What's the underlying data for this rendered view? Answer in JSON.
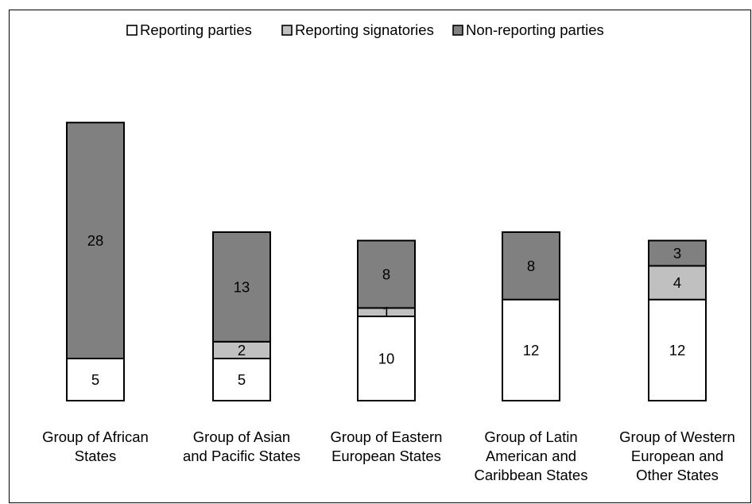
{
  "chart_data": {
    "type": "bar",
    "stacked": true,
    "categories": [
      [
        "Group of African",
        "States"
      ],
      [
        "Group of Asian",
        "and Pacific States"
      ],
      [
        "Group of Eastern",
        "European States"
      ],
      [
        "Group of Latin",
        "American and",
        "Caribbean States"
      ],
      [
        "Group of Western",
        "European and",
        "Other States"
      ]
    ],
    "series": [
      {
        "name": "Reporting parties",
        "color": "#ffffff",
        "values": [
          5,
          5,
          10,
          12,
          12
        ]
      },
      {
        "name": "Reporting signatories",
        "color": "#c0c0c0",
        "values": [
          0,
          2,
          1,
          0,
          4
        ]
      },
      {
        "name": "Non-reporting parties",
        "color": "#808080",
        "values": [
          28,
          13,
          8,
          8,
          3
        ]
      }
    ],
    "data_labels": [
      [
        "5",
        "",
        "28"
      ],
      [
        "5",
        "2",
        "13"
      ],
      [
        "10",
        "1",
        "8"
      ],
      [
        "12",
        "",
        "8"
      ],
      [
        "12",
        "4",
        "3"
      ]
    ],
    "ylim": [
      0,
      33
    ],
    "grid": false,
    "legend_position": "top"
  }
}
